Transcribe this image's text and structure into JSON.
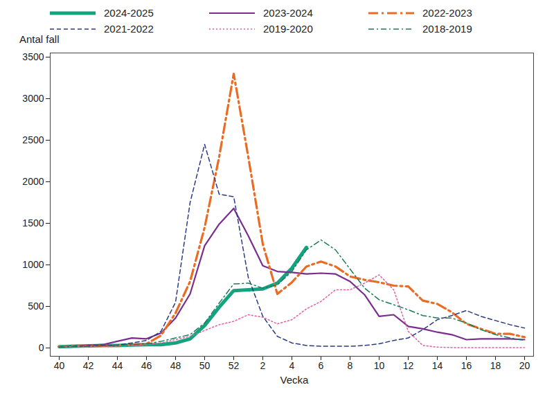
{
  "chart_data": {
    "type": "line",
    "x_label": "Vecka",
    "y_label": "Antal fall",
    "legend": "top",
    "grid": false,
    "categories": [
      "40",
      null,
      "42",
      null,
      "44",
      null,
      "46",
      null,
      "48",
      null,
      "50",
      null,
      "52",
      null,
      "2",
      null,
      "4",
      null,
      "6",
      null,
      "8",
      null,
      "10",
      null,
      "12",
      null,
      "14",
      null,
      "16",
      null,
      "18",
      null,
      "20"
    ],
    "ylim": [
      -100,
      3550
    ],
    "yticks": [
      0,
      500,
      1000,
      1500,
      2000,
      2500,
      3000,
      3500
    ],
    "series": [
      {
        "name": "2024-2025",
        "color": "#14a37f",
        "line_style": "solid",
        "values": [
          15,
          20,
          25,
          30,
          30,
          35,
          40,
          40,
          60,
          110,
          270,
          490,
          690,
          700,
          710,
          780,
          960,
          1210,
          null,
          null,
          null,
          null,
          null,
          null,
          null,
          null,
          null,
          null,
          null,
          null,
          null,
          null,
          null
        ]
      },
      {
        "name": "2023-2024",
        "color": "#7b2d8e",
        "line_style": "solid",
        "values": [
          15,
          20,
          30,
          40,
          80,
          120,
          110,
          180,
          360,
          650,
          1230,
          1490,
          1680,
          1350,
          990,
          920,
          910,
          890,
          900,
          890,
          800,
          640,
          380,
          400,
          260,
          230,
          190,
          160,
          100,
          110,
          110,
          110,
          100
        ]
      },
      {
        "name": "2022-2023",
        "color": "#ea6c24",
        "line_style": "dashdot",
        "values": [
          15,
          20,
          20,
          25,
          30,
          40,
          50,
          150,
          420,
          800,
          1450,
          2300,
          3300,
          2300,
          1250,
          650,
          790,
          980,
          1040,
          980,
          860,
          820,
          790,
          750,
          740,
          570,
          530,
          430,
          290,
          230,
          170,
          170,
          130
        ]
      },
      {
        "name": "2021-2022",
        "color": "#2b3a85",
        "line_style": "dashed",
        "values": [
          15,
          20,
          25,
          30,
          35,
          60,
          90,
          200,
          550,
          1750,
          2450,
          1850,
          1820,
          850,
          380,
          140,
          60,
          30,
          20,
          20,
          20,
          30,
          50,
          90,
          120,
          220,
          340,
          390,
          450,
          380,
          330,
          280,
          240
        ]
      },
      {
        "name": "2019-2020",
        "color": "#e05fa0",
        "line_style": "dotted",
        "values": [
          10,
          15,
          20,
          20,
          25,
          30,
          40,
          60,
          100,
          140,
          210,
          280,
          320,
          400,
          370,
          290,
          340,
          470,
          560,
          700,
          700,
          780,
          880,
          700,
          200,
          30,
          10,
          5,
          5,
          5,
          5,
          5,
          5
        ]
      },
      {
        "name": "2018-2019",
        "color": "#1b7a5a",
        "line_style": "dashdot",
        "values": [
          10,
          15,
          20,
          25,
          30,
          40,
          50,
          80,
          120,
          160,
          300,
          540,
          770,
          780,
          720,
          760,
          920,
          1180,
          1300,
          1180,
          950,
          720,
          580,
          520,
          460,
          390,
          360,
          360,
          300,
          220,
          160,
          120,
          90
        ]
      }
    ]
  }
}
